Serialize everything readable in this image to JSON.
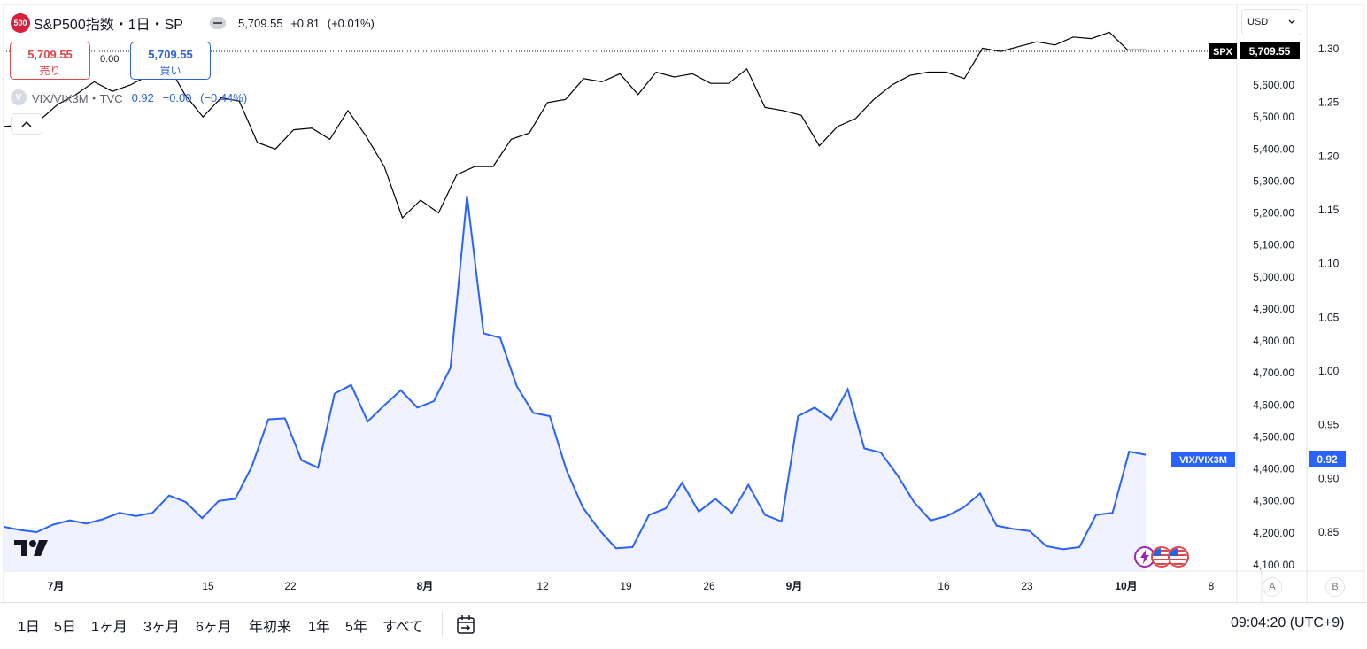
{
  "header": {
    "symbol_badge": "500",
    "title": "S&P500指数・1日・SP",
    "last": "5,709.55",
    "change": "+0.81",
    "change_pct": "(+0.01%)"
  },
  "trade": {
    "sell_price": "5,709.55",
    "sell_label": "売り",
    "spread": "0.00",
    "buy_price": "5,709.55",
    "buy_label": "買い"
  },
  "indicator": {
    "badge": "V",
    "name": "VIX/VIX3M・TVC",
    "value": "0.92",
    "change": "−0.00",
    "change_pct": "(−0.44%)"
  },
  "currency_select": "USD",
  "colors": {
    "spx_line": "#000000",
    "ratio_line": "#2962ff",
    "ratio_fill": "#f0f3ff",
    "label_blue": "#2962ff",
    "sell": "#e0474c",
    "buy": "#2e62d9"
  },
  "chart_data": {
    "type": "line",
    "x_labels": [
      "7月",
      "15",
      "22",
      "8月",
      "12",
      "19",
      "26",
      "9月",
      "16",
      "23",
      "10月",
      "8"
    ],
    "series": [
      {
        "name": "SPX",
        "axis": "middle",
        "last_label": "5,709.55",
        "values": [
          5470,
          5475,
          5490,
          5540,
          5570,
          5610,
          5580,
          5600,
          5630,
          5670,
          5570,
          5500,
          5560,
          5550,
          5420,
          5400,
          5460,
          5465,
          5430,
          5520,
          5440,
          5345,
          5185,
          5240,
          5200,
          5320,
          5345,
          5345,
          5430,
          5450,
          5545,
          5555,
          5620,
          5610,
          5635,
          5570,
          5640,
          5625,
          5635,
          5605,
          5605,
          5650,
          5530,
          5520,
          5505,
          5410,
          5470,
          5495,
          5555,
          5600,
          5630,
          5640,
          5640,
          5620,
          5715,
          5705,
          5720,
          5735,
          5725,
          5750,
          5745,
          5765,
          5710,
          5710
        ]
      },
      {
        "name": "VIX/VIX3M",
        "axis": "right",
        "last_label": "0.92",
        "values": [
          0.855,
          0.852,
          0.85,
          0.857,
          0.861,
          0.858,
          0.862,
          0.868,
          0.865,
          0.868,
          0.884,
          0.878,
          0.863,
          0.879,
          0.881,
          0.911,
          0.955,
          0.956,
          0.917,
          0.91,
          0.979,
          0.987,
          0.953,
          0.968,
          0.982,
          0.966,
          0.972,
          1.003,
          1.163,
          1.035,
          1.031,
          0.986,
          0.961,
          0.958,
          0.908,
          0.873,
          0.852,
          0.835,
          0.836,
          0.866,
          0.872,
          0.896,
          0.869,
          0.881,
          0.868,
          0.894,
          0.866,
          0.86,
          0.958,
          0.966,
          0.955,
          0.983,
          0.928,
          0.924,
          0.903,
          0.878,
          0.861,
          0.865,
          0.873,
          0.886,
          0.856,
          0.853,
          0.851,
          0.837,
          0.834,
          0.836,
          0.866,
          0.868,
          0.925,
          0.922
        ]
      }
    ],
    "y_axis_middle": {
      "min": 4100,
      "max": 5800,
      "ticks": [
        "5,600.00",
        "5,500.00",
        "5,400.00",
        "5,300.00",
        "5,200.00",
        "5,100.00",
        "5,000.00",
        "4,900.00",
        "4,800.00",
        "4,700.00",
        "4,600.00",
        "4,500.00",
        "4,400.00",
        "4,300.00",
        "4,200.00",
        "4,100.00"
      ],
      "tick_values": [
        5600,
        5500,
        5400,
        5300,
        5200,
        5100,
        5000,
        4900,
        4800,
        4700,
        4600,
        4500,
        4400,
        4300,
        4200,
        4100
      ]
    },
    "y_axis_right": {
      "ticks": [
        "1.30",
        "1.25",
        "1.20",
        "1.15",
        "1.10",
        "1.05",
        "1.00",
        "0.95",
        "0.90",
        "0.85"
      ],
      "tick_values": [
        1.3,
        1.25,
        1.2,
        1.15,
        1.1,
        1.05,
        1.0,
        0.95,
        0.9,
        0.85
      ]
    },
    "grid": false
  },
  "scale_buttons": [
    "A",
    "B"
  ],
  "ranges": [
    "1日",
    "5日",
    "1ヶ月",
    "3ヶ月",
    "6ヶ月",
    "年初来",
    "1年",
    "5年",
    "すべて"
  ],
  "clock": "09:04:20 (UTC+9)"
}
